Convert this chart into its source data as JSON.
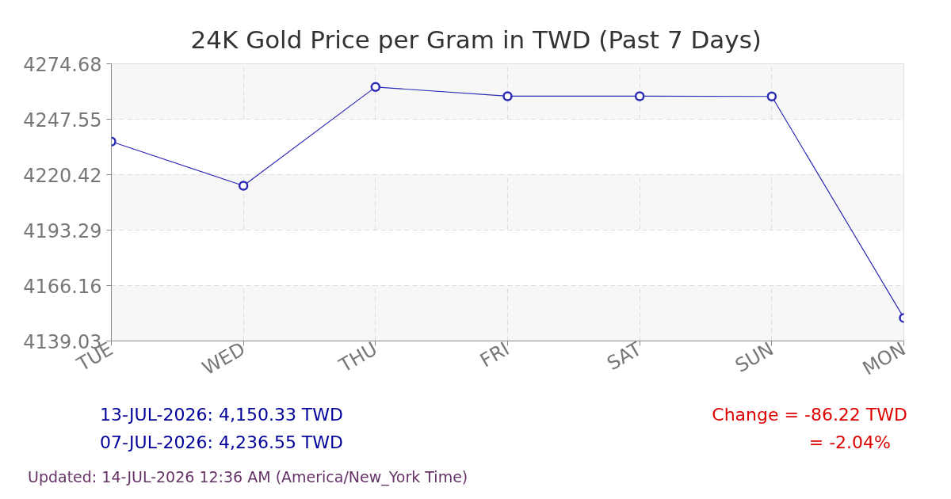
{
  "chart_data": {
    "type": "line",
    "title": "24K Gold Price per Gram in TWD (Past 7 Days)",
    "categories": [
      "TUE",
      "WED",
      "THU",
      "FRI",
      "SAT",
      "SUN",
      "MON"
    ],
    "series": [
      {
        "color": "#2a2ab5",
        "values": [
          4236.6,
          4215.0,
          4263.3,
          4258.8,
          4258.8,
          4258.7,
          4150.3
        ]
      }
    ],
    "ylim": [
      4139.03,
      4274.68
    ],
    "yticks": [
      4139.03,
      4166.16,
      4193.29,
      4220.42,
      4247.55,
      4274.68
    ],
    "grid": true,
    "marker": "circle",
    "line_style": "solid",
    "annotations": [
      "13-JUL-2026: 4,150.33 TWD",
      "07-JUL-2026: 4,236.55 TWD",
      "Change = -86.22 TWD",
      "= -2.04%",
      "Updated: 14-JUL-2026 12:36 AM (America/New_York Time)"
    ]
  }
}
